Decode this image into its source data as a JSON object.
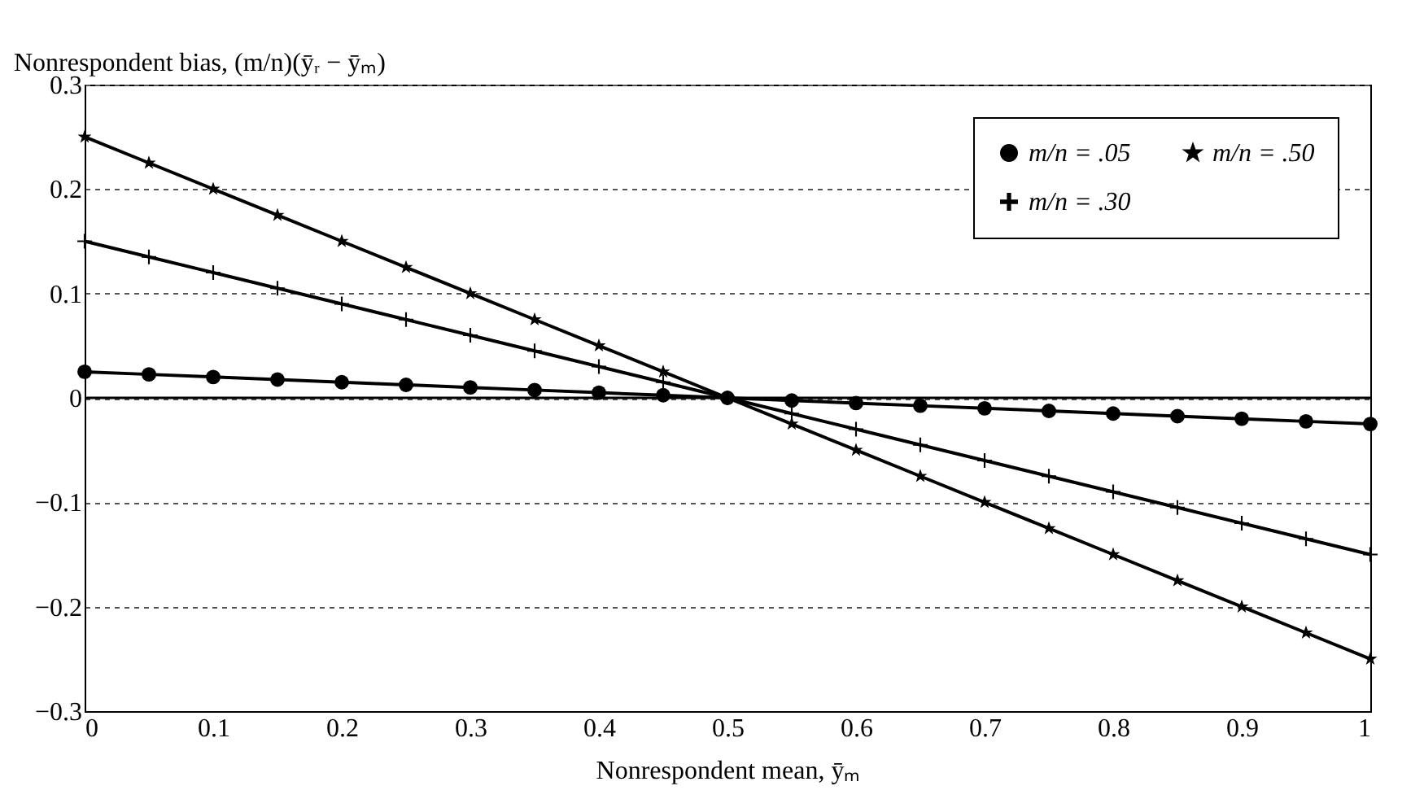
{
  "chart_data": {
    "type": "line",
    "xlabel": "Nonrespondent mean, ȳₘ",
    "ylabel": "Nonrespondent bias, (m/n)(ȳᵣ − ȳₘ)",
    "x": [
      0,
      0.05,
      0.1,
      0.15,
      0.2,
      0.25,
      0.3,
      0.35,
      0.4,
      0.45,
      0.5,
      0.55,
      0.6,
      0.65,
      0.7,
      0.75,
      0.8,
      0.85,
      0.9,
      0.95,
      1
    ],
    "series": [
      {
        "name": "m/n = .05",
        "color": "#000000",
        "marker": "circle",
        "values": [
          0.025,
          0.0225,
          0.02,
          0.0175,
          0.015,
          0.0125,
          0.01,
          0.0075,
          0.005,
          0.0025,
          0,
          -0.0025,
          -0.005,
          -0.0075,
          -0.01,
          -0.0125,
          -0.015,
          -0.0175,
          -0.02,
          -0.0225,
          -0.025
        ]
      },
      {
        "name": "m/n = .30",
        "color": "#000000",
        "marker": "cross",
        "values": [
          0.15,
          0.135,
          0.12,
          0.105,
          0.09,
          0.075,
          0.06,
          0.045,
          0.03,
          0.015,
          0,
          -0.015,
          -0.03,
          -0.045,
          -0.06,
          -0.075,
          -0.09,
          -0.105,
          -0.12,
          -0.135,
          -0.15
        ]
      },
      {
        "name": "m/n = .50",
        "color": "#000000",
        "marker": "star",
        "values": [
          0.25,
          0.225,
          0.2,
          0.175,
          0.15,
          0.125,
          0.1,
          0.075,
          0.05,
          0.025,
          0,
          -0.025,
          -0.05,
          -0.075,
          -0.1,
          -0.125,
          -0.15,
          -0.175,
          -0.2,
          -0.225,
          -0.25
        ]
      }
    ],
    "xlim": [
      0,
      1
    ],
    "xticks": [
      0,
      0.1,
      0.2,
      0.3,
      0.4,
      0.5,
      0.6,
      0.7,
      0.8,
      0.9,
      1
    ],
    "ylim": [
      -0.3,
      0.3
    ],
    "yticks": [
      {
        "value": -0.3,
        "label": "−0.3"
      },
      {
        "value": -0.2,
        "label": "−0.2"
      },
      {
        "value": -0.1,
        "label": "−0.1"
      },
      0,
      0.1,
      0.2,
      0.3
    ],
    "ref_lines": [
      {
        "axis": "y",
        "value": 0
      }
    ],
    "grid": "y",
    "legend": "top right",
    "line_style": "solid"
  }
}
